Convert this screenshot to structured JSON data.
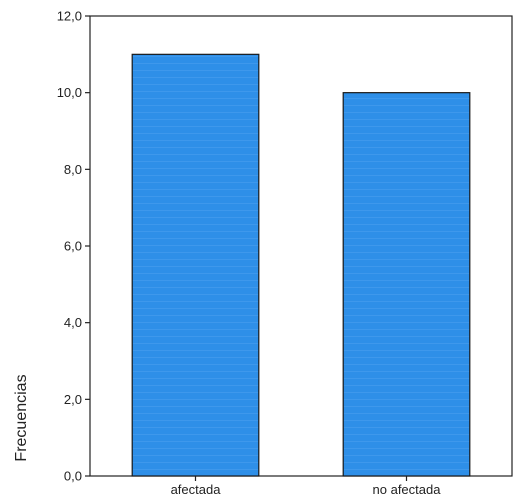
{
  "chart_data": {
    "type": "bar",
    "categories": [
      "afectada",
      "no afectada"
    ],
    "values": [
      11.0,
      10.0
    ],
    "title": "",
    "xlabel": "",
    "ylabel": "Frecuencias",
    "ylim": [
      0,
      12
    ],
    "yticks": [
      "0,0",
      "2,0",
      "4,0",
      "6,0",
      "8,0",
      "10,0",
      "12,0"
    ],
    "grid": false,
    "bar_color": "#2e8fe8",
    "bar_edge_color": "#1a1a1a"
  }
}
